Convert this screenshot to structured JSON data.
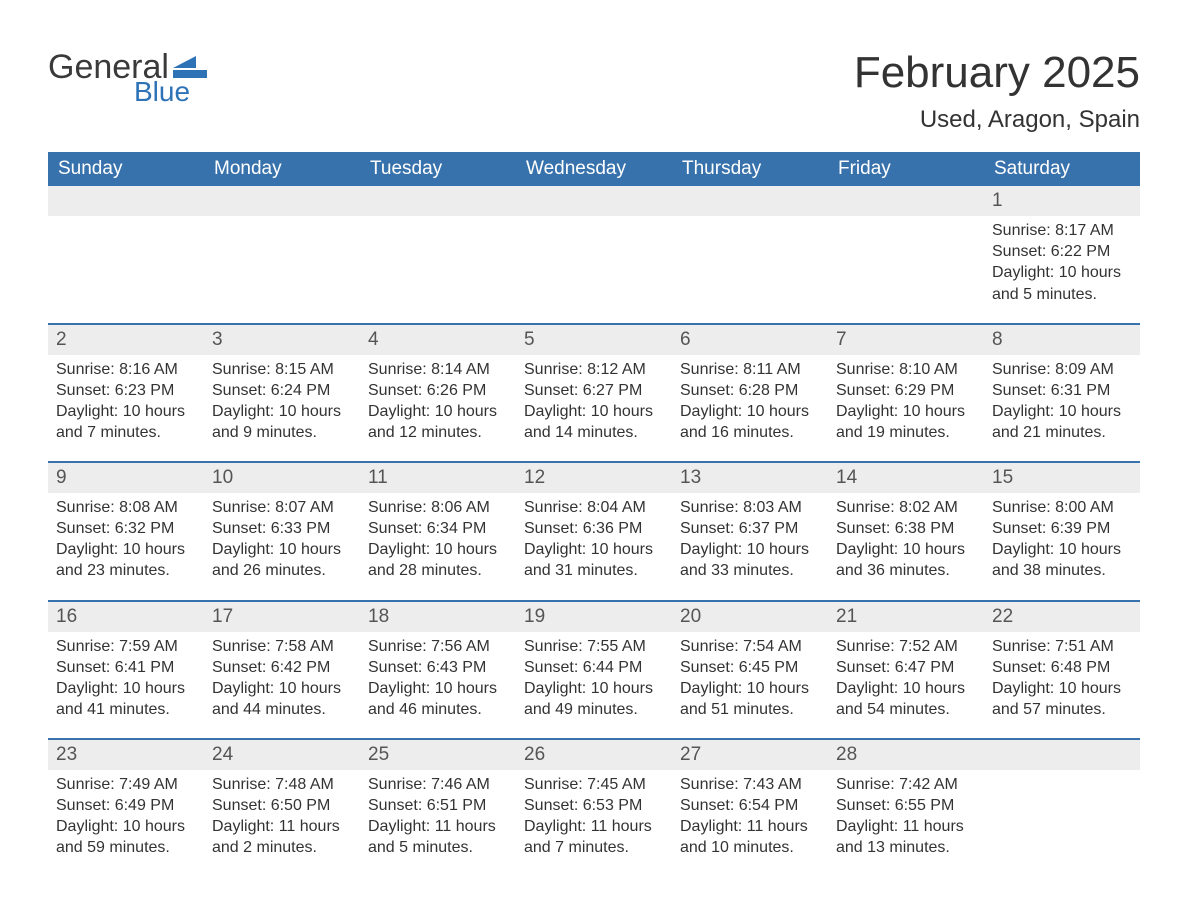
{
  "logo": {
    "word1": "General",
    "word2": "Blue"
  },
  "title": "February 2025",
  "location": "Used, Aragon, Spain",
  "colors": {
    "header_bg": "#3872ac",
    "header_text": "#ffffff",
    "band_bg": "#ededed",
    "rule": "#3872ac",
    "body_text": "#333333",
    "logo_gray": "#3a3a3a",
    "logo_blue": "#2f73b7",
    "page_bg": "#ffffff"
  },
  "typography": {
    "title_fontsize": 44,
    "location_fontsize": 24,
    "weekday_fontsize": 19,
    "daynum_fontsize": 19,
    "detail_fontsize": 16,
    "font_family": "Arial"
  },
  "weekdays": [
    "Sunday",
    "Monday",
    "Tuesday",
    "Wednesday",
    "Thursday",
    "Friday",
    "Saturday"
  ],
  "weeks": [
    {
      "days": [
        null,
        null,
        null,
        null,
        null,
        null,
        {
          "n": "1",
          "sunrise": "Sunrise: 8:17 AM",
          "sunset": "Sunset: 6:22 PM",
          "daylight": "Daylight: 10 hours and 5 minutes."
        }
      ]
    },
    {
      "days": [
        {
          "n": "2",
          "sunrise": "Sunrise: 8:16 AM",
          "sunset": "Sunset: 6:23 PM",
          "daylight": "Daylight: 10 hours and 7 minutes."
        },
        {
          "n": "3",
          "sunrise": "Sunrise: 8:15 AM",
          "sunset": "Sunset: 6:24 PM",
          "daylight": "Daylight: 10 hours and 9 minutes."
        },
        {
          "n": "4",
          "sunrise": "Sunrise: 8:14 AM",
          "sunset": "Sunset: 6:26 PM",
          "daylight": "Daylight: 10 hours and 12 minutes."
        },
        {
          "n": "5",
          "sunrise": "Sunrise: 8:12 AM",
          "sunset": "Sunset: 6:27 PM",
          "daylight": "Daylight: 10 hours and 14 minutes."
        },
        {
          "n": "6",
          "sunrise": "Sunrise: 8:11 AM",
          "sunset": "Sunset: 6:28 PM",
          "daylight": "Daylight: 10 hours and 16 minutes."
        },
        {
          "n": "7",
          "sunrise": "Sunrise: 8:10 AM",
          "sunset": "Sunset: 6:29 PM",
          "daylight": "Daylight: 10 hours and 19 minutes."
        },
        {
          "n": "8",
          "sunrise": "Sunrise: 8:09 AM",
          "sunset": "Sunset: 6:31 PM",
          "daylight": "Daylight: 10 hours and 21 minutes."
        }
      ]
    },
    {
      "days": [
        {
          "n": "9",
          "sunrise": "Sunrise: 8:08 AM",
          "sunset": "Sunset: 6:32 PM",
          "daylight": "Daylight: 10 hours and 23 minutes."
        },
        {
          "n": "10",
          "sunrise": "Sunrise: 8:07 AM",
          "sunset": "Sunset: 6:33 PM",
          "daylight": "Daylight: 10 hours and 26 minutes."
        },
        {
          "n": "11",
          "sunrise": "Sunrise: 8:06 AM",
          "sunset": "Sunset: 6:34 PM",
          "daylight": "Daylight: 10 hours and 28 minutes."
        },
        {
          "n": "12",
          "sunrise": "Sunrise: 8:04 AM",
          "sunset": "Sunset: 6:36 PM",
          "daylight": "Daylight: 10 hours and 31 minutes."
        },
        {
          "n": "13",
          "sunrise": "Sunrise: 8:03 AM",
          "sunset": "Sunset: 6:37 PM",
          "daylight": "Daylight: 10 hours and 33 minutes."
        },
        {
          "n": "14",
          "sunrise": "Sunrise: 8:02 AM",
          "sunset": "Sunset: 6:38 PM",
          "daylight": "Daylight: 10 hours and 36 minutes."
        },
        {
          "n": "15",
          "sunrise": "Sunrise: 8:00 AM",
          "sunset": "Sunset: 6:39 PM",
          "daylight": "Daylight: 10 hours and 38 minutes."
        }
      ]
    },
    {
      "days": [
        {
          "n": "16",
          "sunrise": "Sunrise: 7:59 AM",
          "sunset": "Sunset: 6:41 PM",
          "daylight": "Daylight: 10 hours and 41 minutes."
        },
        {
          "n": "17",
          "sunrise": "Sunrise: 7:58 AM",
          "sunset": "Sunset: 6:42 PM",
          "daylight": "Daylight: 10 hours and 44 minutes."
        },
        {
          "n": "18",
          "sunrise": "Sunrise: 7:56 AM",
          "sunset": "Sunset: 6:43 PM",
          "daylight": "Daylight: 10 hours and 46 minutes."
        },
        {
          "n": "19",
          "sunrise": "Sunrise: 7:55 AM",
          "sunset": "Sunset: 6:44 PM",
          "daylight": "Daylight: 10 hours and 49 minutes."
        },
        {
          "n": "20",
          "sunrise": "Sunrise: 7:54 AM",
          "sunset": "Sunset: 6:45 PM",
          "daylight": "Daylight: 10 hours and 51 minutes."
        },
        {
          "n": "21",
          "sunrise": "Sunrise: 7:52 AM",
          "sunset": "Sunset: 6:47 PM",
          "daylight": "Daylight: 10 hours and 54 minutes."
        },
        {
          "n": "22",
          "sunrise": "Sunrise: 7:51 AM",
          "sunset": "Sunset: 6:48 PM",
          "daylight": "Daylight: 10 hours and 57 minutes."
        }
      ]
    },
    {
      "days": [
        {
          "n": "23",
          "sunrise": "Sunrise: 7:49 AM",
          "sunset": "Sunset: 6:49 PM",
          "daylight": "Daylight: 10 hours and 59 minutes."
        },
        {
          "n": "24",
          "sunrise": "Sunrise: 7:48 AM",
          "sunset": "Sunset: 6:50 PM",
          "daylight": "Daylight: 11 hours and 2 minutes."
        },
        {
          "n": "25",
          "sunrise": "Sunrise: 7:46 AM",
          "sunset": "Sunset: 6:51 PM",
          "daylight": "Daylight: 11 hours and 5 minutes."
        },
        {
          "n": "26",
          "sunrise": "Sunrise: 7:45 AM",
          "sunset": "Sunset: 6:53 PM",
          "daylight": "Daylight: 11 hours and 7 minutes."
        },
        {
          "n": "27",
          "sunrise": "Sunrise: 7:43 AM",
          "sunset": "Sunset: 6:54 PM",
          "daylight": "Daylight: 11 hours and 10 minutes."
        },
        {
          "n": "28",
          "sunrise": "Sunrise: 7:42 AM",
          "sunset": "Sunset: 6:55 PM",
          "daylight": "Daylight: 11 hours and 13 minutes."
        },
        null
      ]
    }
  ]
}
